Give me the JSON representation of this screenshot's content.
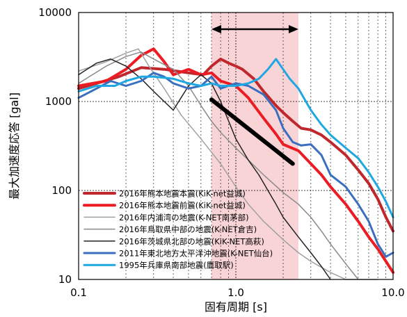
{
  "chart_data": {
    "type": "line",
    "xlabel": "固有周期 [s]",
    "ylabel": "最大加速度応答 [gal]",
    "x_scale": "log",
    "y_scale": "log",
    "xlim": [
      0.1,
      10.0
    ],
    "ylim": [
      10,
      10000
    ],
    "x_ticks": [
      "0.1",
      "1.0",
      "10.0"
    ],
    "y_ticks": [
      "10",
      "100",
      "1000",
      "10000"
    ],
    "grid": true,
    "legend_position": "bottom-left",
    "highlight_band": {
      "x": [
        0.7,
        2.5
      ],
      "color": "#f9d4d7"
    },
    "range_arrow": {
      "x": [
        0.7,
        2.5
      ],
      "y": 6500
    },
    "trend_line": {
      "x": [
        0.7,
        2.3
      ],
      "y": [
        1050,
        200
      ],
      "color": "#000000"
    },
    "series": [
      {
        "name": "2016年熊本地震本震(KiK-net益城)",
        "color": "#c0272d",
        "width": 4,
        "x": [
          0.1,
          0.13,
          0.18,
          0.25,
          0.35,
          0.5,
          0.62,
          0.7,
          0.8,
          0.9,
          1.0,
          1.1,
          1.3,
          1.5,
          1.8,
          2.0,
          2.3,
          2.6,
          3.0,
          3.5,
          4.0,
          5.0,
          6.0,
          7.0,
          8.0,
          9.0,
          10.0
        ],
        "y": [
          1400,
          1600,
          1900,
          2400,
          2300,
          2100,
          2000,
          2500,
          3000,
          2700,
          2500,
          2300,
          1800,
          1300,
          900,
          750,
          600,
          500,
          480,
          420,
          350,
          250,
          170,
          120,
          80,
          50,
          35
        ]
      },
      {
        "name": "2016年熊本地震前震(KiK-net益城)",
        "color": "#ec1c24",
        "width": 4,
        "x": [
          0.1,
          0.15,
          0.2,
          0.25,
          0.3,
          0.35,
          0.4,
          0.5,
          0.6,
          0.7,
          0.8,
          1.0,
          1.2,
          1.5,
          1.8,
          2.0,
          2.5,
          3.0,
          3.5,
          4.0,
          5.0,
          6.0,
          7.0,
          8.0,
          9.0,
          10.0
        ],
        "y": [
          1500,
          1700,
          2300,
          3300,
          3900,
          2800,
          2000,
          2300,
          2000,
          2100,
          1700,
          1500,
          1100,
          650,
          430,
          330,
          280,
          200,
          150,
          110,
          70,
          45,
          30,
          22,
          16,
          12
        ]
      },
      {
        "name": "2016年内浦湾の地震(K-NET南茅部)",
        "color": "#a0a0a0",
        "width": 1.5,
        "x": [
          0.1,
          0.15,
          0.2,
          0.24,
          0.28,
          0.35,
          0.45,
          0.6,
          0.8,
          1.0,
          1.2,
          1.5,
          2.0,
          2.5,
          3.0,
          4.0,
          5.0,
          6.0,
          7.0,
          8.0
        ],
        "y": [
          2200,
          2800,
          3500,
          3900,
          2500,
          1400,
          700,
          380,
          200,
          110,
          70,
          45,
          28,
          20,
          16,
          12,
          10,
          10,
          10,
          10
        ]
      },
      {
        "name": "2016年鳥取県中部の地震(K-NET倉吉)",
        "color": "#8a8a8a",
        "width": 1.5,
        "x": [
          0.1,
          0.15,
          0.2,
          0.25,
          0.3,
          0.4,
          0.5,
          0.6,
          0.7,
          0.8,
          1.0,
          1.2,
          1.5,
          2.0,
          2.5,
          3.0,
          3.5,
          4.0,
          5.0,
          6.0
        ],
        "y": [
          1600,
          2500,
          3200,
          3600,
          3000,
          2300,
          1500,
          900,
          600,
          450,
          300,
          220,
          150,
          95,
          70,
          50,
          35,
          25,
          15,
          10
        ]
      },
      {
        "name": "2016年茨城県北部の地震(KiK-NET高萩)",
        "color": "#222222",
        "width": 1.5,
        "x": [
          0.1,
          0.13,
          0.16,
          0.2,
          0.25,
          0.3,
          0.35,
          0.4,
          0.5,
          0.6,
          0.7,
          0.8,
          0.9,
          1.0,
          1.2,
          1.4,
          1.6,
          1.8,
          2.0,
          2.5,
          3.0,
          3.5,
          4.0
        ],
        "y": [
          2000,
          2700,
          3000,
          2500,
          1800,
          1300,
          1000,
          800,
          1500,
          2000,
          1600,
          1000,
          600,
          380,
          220,
          150,
          100,
          70,
          50,
          30,
          20,
          14,
          10
        ]
      },
      {
        "name": "2011年東北地方太平洋沖地震(K-NET仙台)",
        "color": "#3a6fbf",
        "width": 3,
        "x": [
          0.1,
          0.13,
          0.16,
          0.2,
          0.25,
          0.3,
          0.35,
          0.4,
          0.5,
          0.6,
          0.7,
          0.8,
          1.0,
          1.2,
          1.5,
          1.8,
          2.0,
          2.3,
          2.6,
          3.0,
          3.5,
          4.0,
          5.0,
          6.0,
          7.0,
          8.0,
          9.0,
          10.0
        ],
        "y": [
          1100,
          1400,
          1700,
          1500,
          1700,
          2100,
          1900,
          1600,
          1400,
          1500,
          1900,
          1400,
          1600,
          1500,
          1200,
          800,
          500,
          350,
          320,
          330,
          250,
          150,
          110,
          70,
          45,
          25,
          18,
          20
        ]
      },
      {
        "name": "1995年兵庫県南部地震(鷹取駅)",
        "color": "#1ea7e1",
        "width": 3,
        "x": [
          0.1,
          0.13,
          0.17,
          0.2,
          0.25,
          0.3,
          0.4,
          0.5,
          0.6,
          0.7,
          0.8,
          1.0,
          1.2,
          1.4,
          1.6,
          1.8,
          2.0,
          2.2,
          2.5,
          3.0,
          3.5,
          4.0,
          5.0,
          6.0,
          7.0,
          8.0,
          9.0,
          10.0
        ],
        "y": [
          1300,
          1500,
          1500,
          1700,
          1900,
          1900,
          1800,
          1600,
          1500,
          1600,
          1500,
          1500,
          1600,
          1800,
          2300,
          3000,
          2300,
          1800,
          1400,
          800,
          550,
          420,
          300,
          230,
          160,
          110,
          75,
          50
        ]
      }
    ]
  }
}
